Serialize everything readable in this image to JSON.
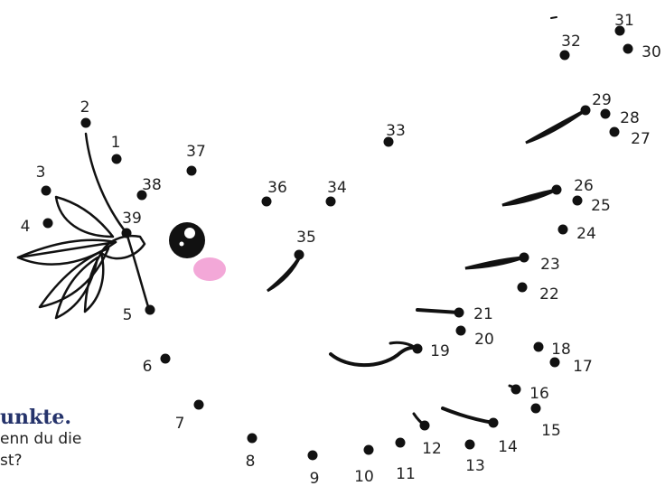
{
  "worksheet": {
    "caption": {
      "heading": "unkte.",
      "line1": "enn du die",
      "line2": "st?"
    },
    "colors": {
      "ink": "#111111",
      "cheek": "#f3a8d8",
      "heading": "#25336b"
    },
    "icons": [
      "leaf-sprig-icon",
      "eye-icon",
      "cheek-icon"
    ],
    "dots": [
      {
        "n": "1"
      },
      {
        "n": "2"
      },
      {
        "n": "3"
      },
      {
        "n": "4"
      },
      {
        "n": "5"
      },
      {
        "n": "6"
      },
      {
        "n": "7"
      },
      {
        "n": "8"
      },
      {
        "n": "9"
      },
      {
        "n": "10"
      },
      {
        "n": "11"
      },
      {
        "n": "12"
      },
      {
        "n": "13"
      },
      {
        "n": "14"
      },
      {
        "n": "15"
      },
      {
        "n": "16"
      },
      {
        "n": "17"
      },
      {
        "n": "18"
      },
      {
        "n": "19"
      },
      {
        "n": "20"
      },
      {
        "n": "21"
      },
      {
        "n": "22"
      },
      {
        "n": "23"
      },
      {
        "n": "24"
      },
      {
        "n": "25"
      },
      {
        "n": "26"
      },
      {
        "n": "27"
      },
      {
        "n": "28"
      },
      {
        "n": "29"
      },
      {
        "n": "30"
      },
      {
        "n": "31"
      },
      {
        "n": "32"
      },
      {
        "n": "33"
      },
      {
        "n": "34"
      },
      {
        "n": "35"
      },
      {
        "n": "36"
      },
      {
        "n": "37"
      },
      {
        "n": "38"
      },
      {
        "n": "39"
      }
    ]
  }
}
